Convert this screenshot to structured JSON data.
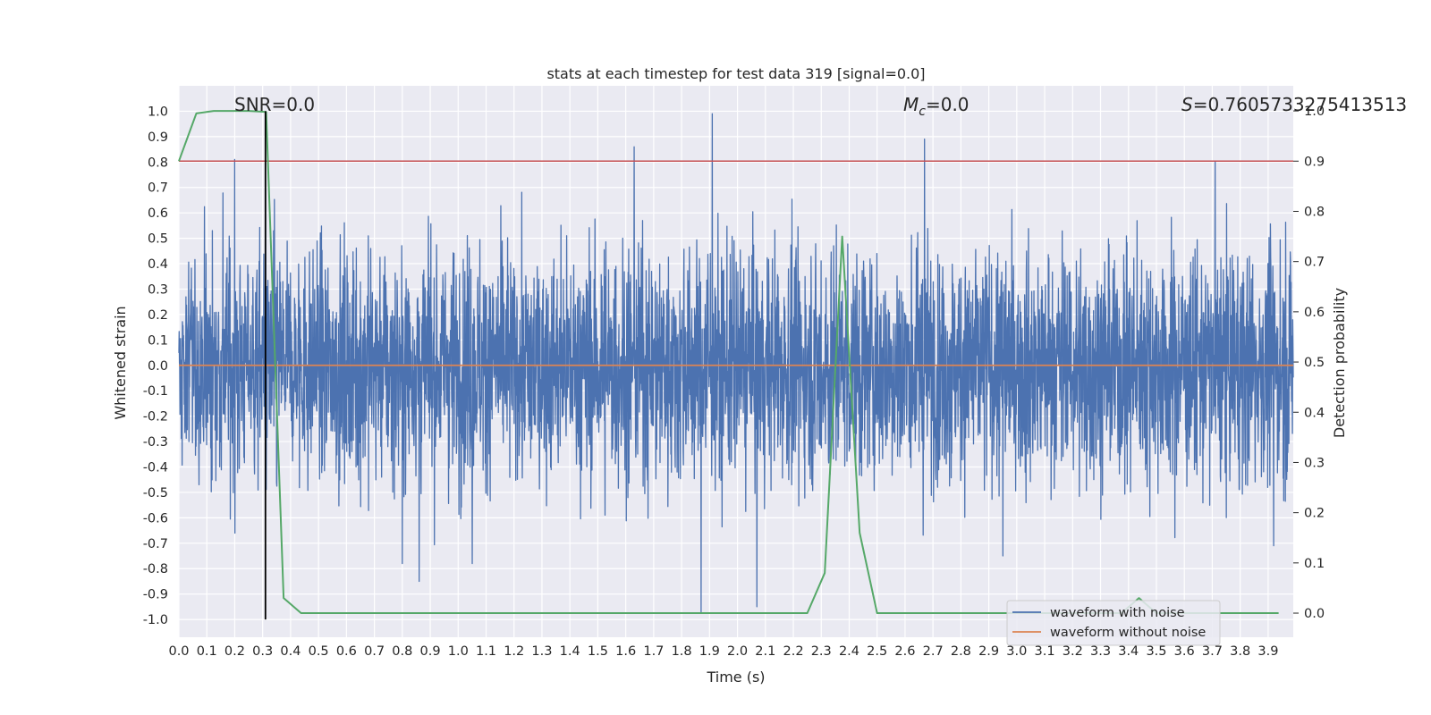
{
  "chart_data": {
    "type": "line",
    "title": "stats at each timestep for test data 319 [signal=0.0]",
    "xlabel": "Time (s)",
    "ylabel_left": "Whitened strain",
    "ylabel_right": "Detection probability",
    "xlim": [
      0.0,
      3.99
    ],
    "ylim_left": [
      -1.07,
      1.1
    ],
    "ylim_right": [
      -0.048,
      1.05
    ],
    "x_ticks": [
      "0.0",
      "0.1",
      "0.2",
      "0.3",
      "0.4",
      "0.5",
      "0.6",
      "0.7",
      "0.8",
      "0.9",
      "1.0",
      "1.1",
      "1.2",
      "1.3",
      "1.4",
      "1.5",
      "1.6",
      "1.7",
      "1.8",
      "1.9",
      "2.0",
      "2.1",
      "2.2",
      "2.3",
      "2.4",
      "2.5",
      "2.6",
      "2.7",
      "2.8",
      "2.9",
      "3.0",
      "3.1",
      "3.2",
      "3.3",
      "3.4",
      "3.5",
      "3.6",
      "3.7",
      "3.8",
      "3.9"
    ],
    "y_ticks_left": [
      "1.0",
      "0.9",
      "0.8",
      "0.7",
      "0.6",
      "0.5",
      "0.4",
      "0.3",
      "0.2",
      "0.1",
      "0.0",
      "-0.1",
      "-0.2",
      "-0.3",
      "-0.4",
      "-0.5",
      "-0.6",
      "-0.7",
      "-0.8",
      "-0.9",
      "-1.0"
    ],
    "y_ticks_right": [
      "1.0",
      "0.9",
      "0.8",
      "0.7",
      "0.6",
      "0.5",
      "0.4",
      "0.3",
      "0.2",
      "0.1",
      "0.0"
    ],
    "annotations": {
      "snr": "SNR=0.0",
      "mc_symbol": "M",
      "mc_sub": "c",
      "mc_value": "=0.0",
      "s_symbol": "S",
      "s_value": "=0.7605733275413513"
    },
    "threshold": {
      "axis": "right",
      "value": 0.9,
      "color": "#c44e52"
    },
    "marker_line": {
      "x": 0.31,
      "color": "#000000"
    },
    "series": [
      {
        "name": "waveform with noise",
        "axis": "left",
        "color": "#4c72b0",
        "description": "whitened strain noise, roughly Gaussian with envelope about ±0.5, peaks near ±1.0",
        "spikes": [
          [
            0.2,
            0.81
          ],
          [
            0.31,
            0.98
          ],
          [
            1.63,
            0.86
          ],
          [
            1.91,
            0.99
          ],
          [
            2.67,
            0.89
          ],
          [
            3.71,
            0.8
          ],
          [
            1.87,
            -0.97
          ],
          [
            2.07,
            -0.95
          ],
          [
            0.8,
            -0.78
          ],
          [
            0.86,
            -0.85
          ],
          [
            1.05,
            -0.78
          ],
          [
            2.95,
            -0.75
          ],
          [
            3.92,
            -0.71
          ]
        ]
      },
      {
        "name": "waveform without noise",
        "axis": "left",
        "color": "#dd8452",
        "x": [
          0.0,
          3.99
        ],
        "y": [
          0.0,
          0.0
        ]
      },
      {
        "name": "detection probability",
        "axis": "right",
        "color": "#55a868",
        "x": [
          0.0,
          0.0625,
          0.125,
          0.1875,
          0.25,
          0.3125,
          0.375,
          0.4375,
          0.5,
          2.25,
          2.3125,
          2.375,
          2.4375,
          2.5,
          3.375,
          3.4375,
          3.5,
          3.9375
        ],
        "y": [
          0.9,
          0.995,
          1.0,
          1.0,
          1.0,
          0.998,
          0.03,
          0.0,
          0.0,
          0.0,
          0.08,
          0.75,
          0.16,
          0.0,
          0.0,
          0.03,
          0.0,
          0.0
        ]
      }
    ],
    "legend": {
      "position": "lower-right",
      "entries": [
        {
          "label": "waveform with noise",
          "color": "#4c72b0"
        },
        {
          "label": "waveform without noise",
          "color": "#dd8452"
        }
      ]
    }
  }
}
